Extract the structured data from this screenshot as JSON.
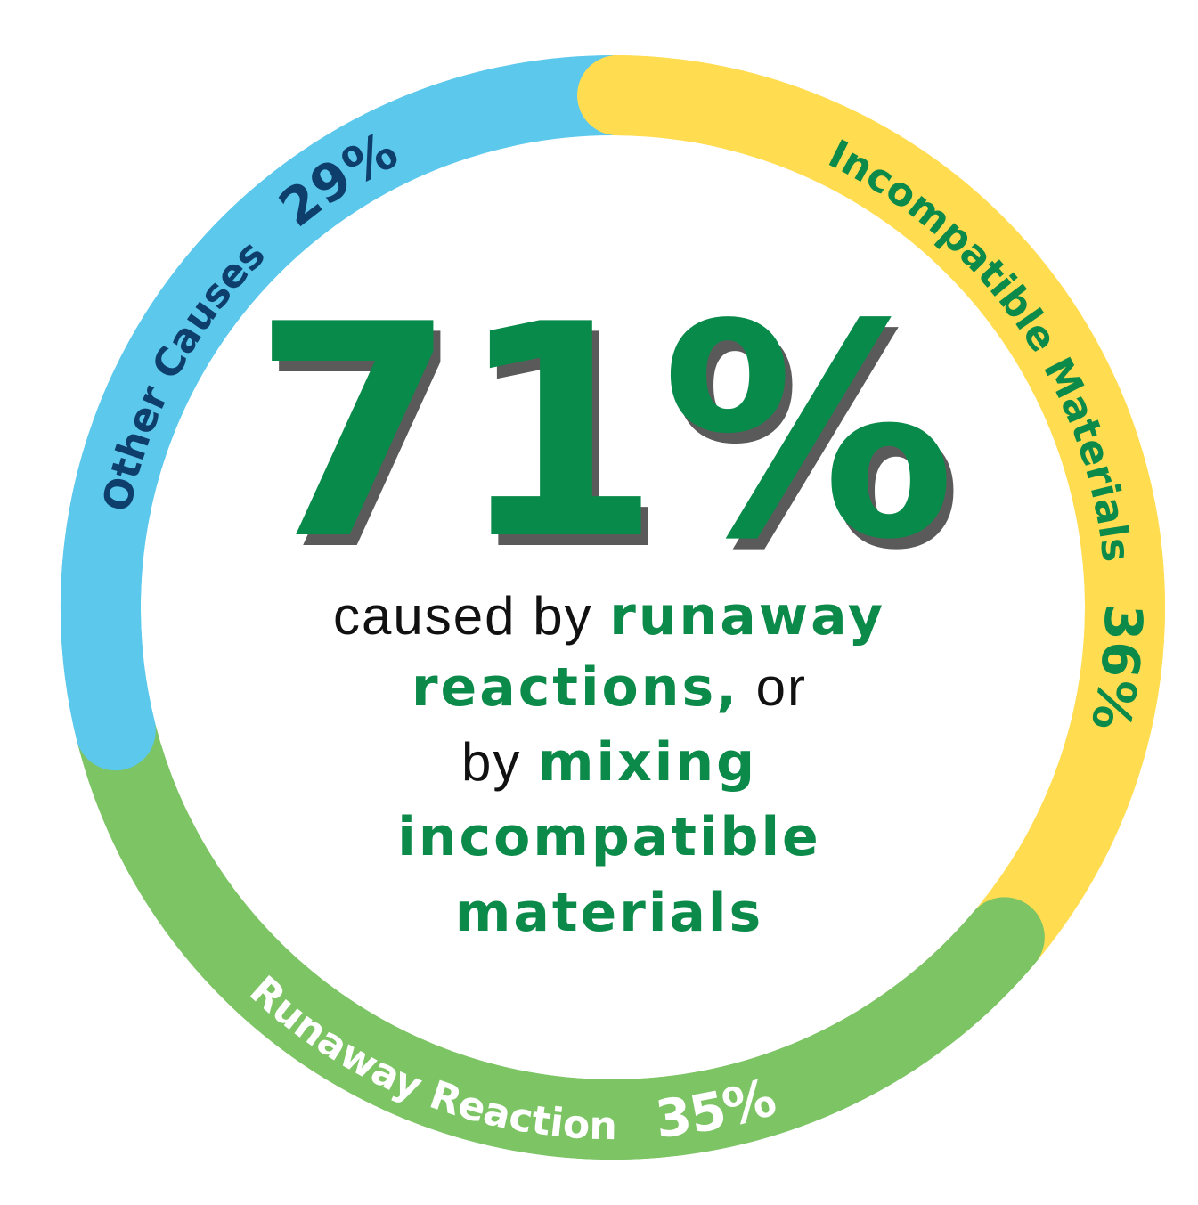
{
  "chart_data": {
    "type": "pie",
    "donut": true,
    "slices": [
      {
        "label": "Incompatible Materials",
        "value": 36,
        "value_label": "36%",
        "color": "#FFDC50",
        "text_color": "#0B8A4A"
      },
      {
        "label": "Runaway Reaction",
        "value": 35,
        "value_label": "35%",
        "color": "#7DC465",
        "text_color": "#FFFFFF"
      },
      {
        "label": "Other Causes",
        "value": 29,
        "value_label": "29%",
        "color": "#5BC8EC",
        "text_color": "#0E3E6B"
      }
    ]
  },
  "center": {
    "headline": "71%",
    "headline_color": "#088A4A",
    "headline_shadow": "#5A5A5A",
    "lines": [
      [
        {
          "text": "caused by ",
          "style": "plain"
        },
        {
          "text": "runaway",
          "style": "strong"
        }
      ],
      [
        {
          "text": "reactions,",
          "style": "strong"
        },
        {
          "text": " or",
          "style": "plain"
        }
      ],
      [
        {
          "text": "by ",
          "style": "plain"
        },
        {
          "text": "mixing",
          "style": "strong"
        }
      ],
      [
        {
          "text": "incompatible",
          "style": "strong"
        }
      ],
      [
        {
          "text": "materials",
          "style": "strong"
        }
      ]
    ],
    "text_color": "#111111",
    "accent_color": "#0B8A4A"
  }
}
